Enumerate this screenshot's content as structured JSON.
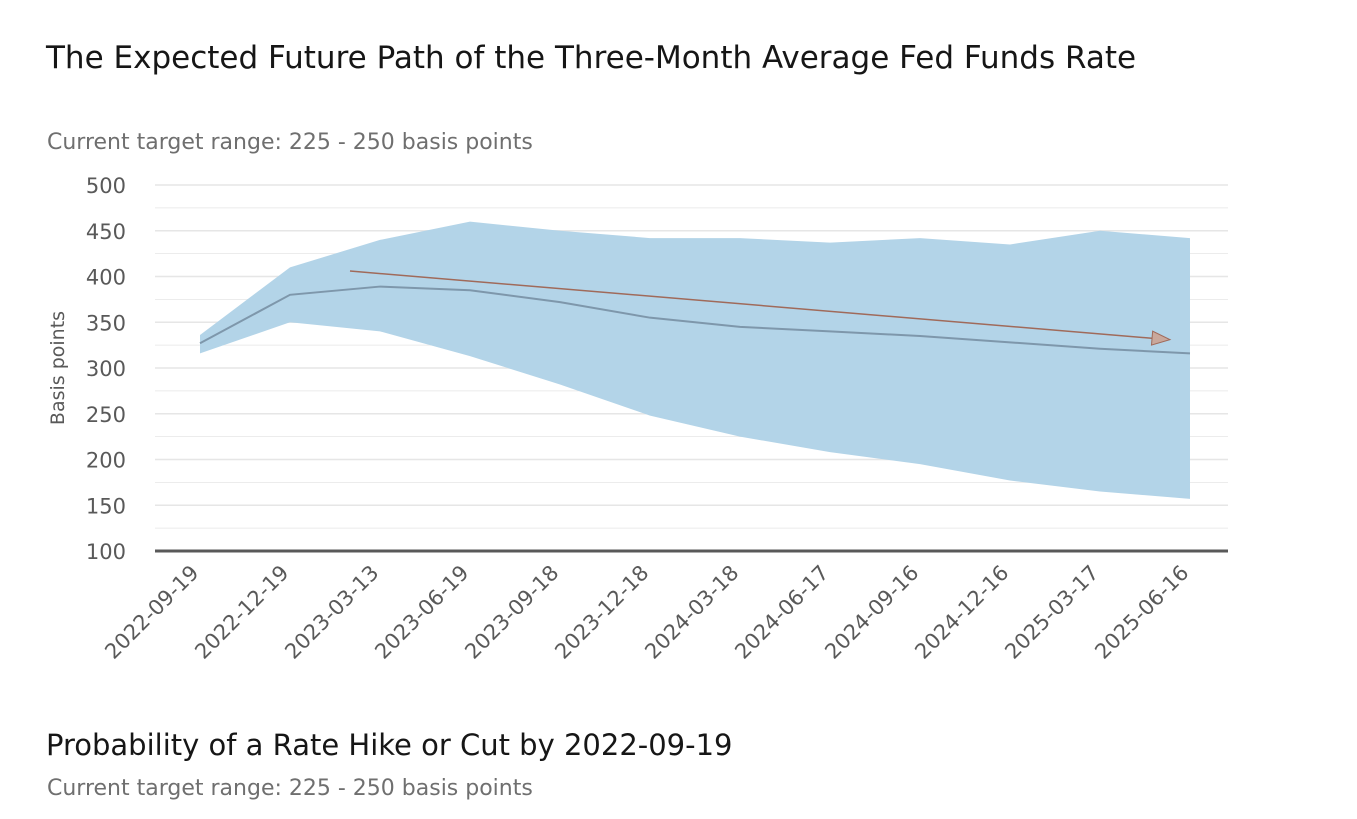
{
  "chart_data": {
    "type": "area",
    "title": "The Expected Future Path of the Three-Month Average Fed Funds Rate",
    "subtitle": "Current target range: 225 - 250 basis points",
    "xlabel": "",
    "ylabel": "Basis points",
    "ylim": [
      100,
      500
    ],
    "yticks": [
      100,
      150,
      200,
      250,
      300,
      350,
      400,
      450,
      500
    ],
    "grid": true,
    "categories": [
      "2022-09-19",
      "2022-12-19",
      "2023-03-13",
      "2023-06-19",
      "2023-09-18",
      "2023-12-18",
      "2024-03-18",
      "2024-06-17",
      "2024-09-16",
      "2024-12-16",
      "2025-03-17",
      "2025-06-16"
    ],
    "series": [
      {
        "role": "range-upper",
        "values": [
          336,
          410,
          440,
          460,
          450,
          442,
          442,
          437,
          442,
          435,
          450,
          442
        ]
      },
      {
        "role": "range-lower",
        "values": [
          316,
          350,
          340,
          313,
          282,
          248,
          225,
          208,
          195,
          177,
          165,
          157
        ]
      },
      {
        "role": "expected-path",
        "values": [
          327,
          380,
          389,
          385,
          372,
          355,
          345,
          340,
          335,
          328,
          321,
          316
        ]
      }
    ],
    "annotation": {
      "type": "arrow",
      "from": [
        "2023-03-13",
        406
      ],
      "to": [
        "2025-06-16",
        331
      ],
      "color": "#a06a5a"
    },
    "colors": {
      "band": "#b3d4e8",
      "line": "#7e97ab",
      "axis": "#595959",
      "grid": "#e6e6e6",
      "tick_label": "#595959"
    }
  },
  "section2": {
    "title": "Probability of a Rate Hike or Cut by 2022-09-19",
    "subtitle": "Current target range: 225 - 250 basis points"
  }
}
